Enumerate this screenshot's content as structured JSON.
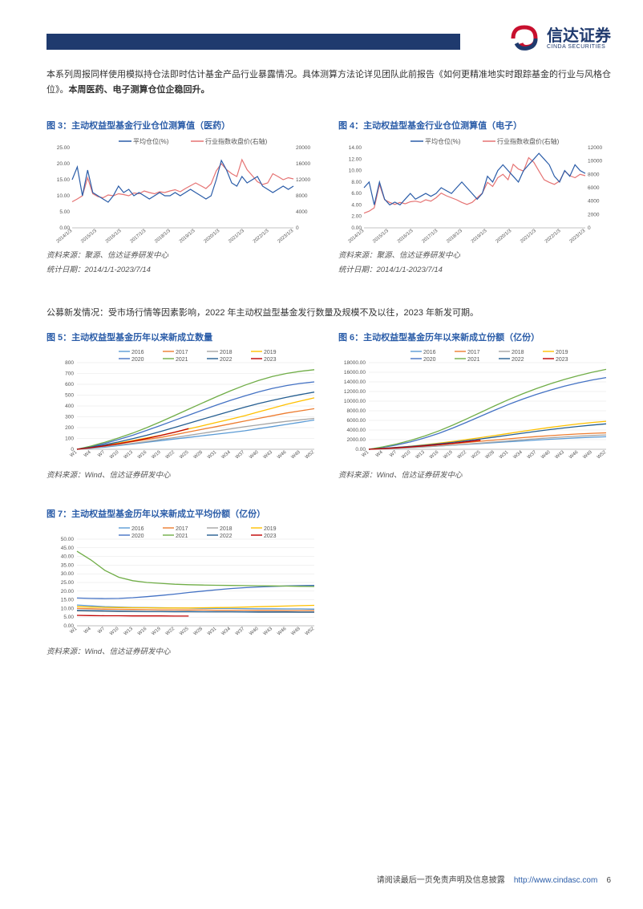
{
  "header": {
    "bar_color": "#1f3a6e",
    "logo_cn": "信达证券",
    "logo_en": "CINDA SECURITIES",
    "logo_colors": {
      "red": "#c8102e",
      "blue": "#1f3a6e",
      "light": "#d9d9d9"
    }
  },
  "para1": {
    "t1": "本系列周报同样使用模拟持仓法即时估计基金产品行业暴露情况。具体测算方法论详见团队此前报告《如何更精准地实时跟踪基金的行业与风格仓位》。",
    "t2": "本周医药、电子测算仓位企稳回升。"
  },
  "chart3": {
    "title": "图 3：主动权益型基金行业仓位测算值（医药）",
    "legend": [
      "平均仓位(%)",
      "行业指数收盘价(右轴)"
    ],
    "colors": {
      "series1": "#2a5ca8",
      "series2": "#e57373",
      "axis": "#888",
      "text": "#333"
    },
    "y1_ticks": [
      "0.00",
      "5.00",
      "10.00",
      "15.00",
      "20.00",
      "25.00"
    ],
    "y2_ticks": [
      "0",
      "4000",
      "8000",
      "12000",
      "16000",
      "20000"
    ],
    "x_ticks": [
      "2014/1/3",
      "2015/1/3",
      "2016/1/3",
      "2017/1/3",
      "2018/1/3",
      "2019/1/3",
      "2020/1/3",
      "2021/1/3",
      "2022/1/3",
      "2023/1/3"
    ],
    "source": "资料来源：聚源、信达证券研发中心",
    "date_range": "统计日期：2014/1/1-2023/7/14",
    "series1": [
      15,
      19,
      10,
      18,
      11,
      10,
      9,
      8,
      10,
      13,
      11,
      12,
      10,
      11,
      10,
      9,
      10,
      11,
      10,
      10,
      11,
      10,
      11,
      12,
      11,
      10,
      9,
      10,
      15,
      21,
      18,
      14,
      13,
      16,
      14,
      15,
      16,
      13,
      12,
      11,
      12,
      13,
      12,
      13
    ],
    "y1_range": [
      0,
      25
    ],
    "series2": [
      6500,
      7200,
      8000,
      12500,
      8500,
      7800,
      7500,
      8200,
      8000,
      8500,
      8300,
      8000,
      8700,
      8500,
      9200,
      8800,
      8500,
      9000,
      8800,
      9200,
      9500,
      9000,
      9800,
      10500,
      11200,
      10500,
      9800,
      11000,
      14200,
      16000,
      14500,
      13500,
      12800,
      17000,
      14500,
      13000,
      11500,
      10800,
      11200,
      13500,
      12800,
      12000,
      12500,
      12200
    ],
    "y2_range": [
      0,
      20000
    ]
  },
  "chart4": {
    "title": "图 4：主动权益型基金行业仓位测算值（电子）",
    "legend": [
      "平均仓位(%)",
      "行业指数收盘价(右轴)"
    ],
    "colors": {
      "series1": "#2a5ca8",
      "series2": "#e57373",
      "axis": "#888",
      "text": "#333"
    },
    "y1_ticks": [
      "0.00",
      "2.00",
      "4.00",
      "6.00",
      "8.00",
      "10.00",
      "12.00",
      "14.00"
    ],
    "y2_ticks": [
      "0",
      "2000",
      "4000",
      "6000",
      "8000",
      "10000",
      "12000"
    ],
    "x_ticks": [
      "2014/1/3",
      "2015/1/3",
      "2016/1/3",
      "2017/1/3",
      "2018/1/3",
      "2019/1/3",
      "2020/1/3",
      "2021/1/3",
      "2022/1/3",
      "2023/1/3"
    ],
    "source": "资料来源：聚源、信达证券研发中心",
    "date_range": "统计日期：2014/1/1-2023/7/14",
    "series1": [
      7,
      8,
      4,
      8,
      5,
      4,
      4.5,
      4,
      5,
      6,
      5,
      5.5,
      6,
      5.5,
      6,
      7,
      6.5,
      6,
      7,
      8,
      7,
      6,
      5,
      6,
      9,
      8,
      10,
      11,
      10,
      9,
      8,
      10,
      11,
      12,
      13,
      12,
      11,
      9,
      8,
      10,
      9,
      11,
      10,
      9.5
    ],
    "y1_range": [
      0,
      14
    ],
    "series2": [
      2200,
      2500,
      3000,
      6500,
      4200,
      3800,
      3500,
      3800,
      3600,
      3900,
      4000,
      3800,
      4200,
      4000,
      4500,
      5200,
      4800,
      4500,
      4200,
      3800,
      3500,
      3800,
      4500,
      5200,
      6800,
      6200,
      7500,
      8000,
      7200,
      9500,
      8800,
      8500,
      10500,
      9800,
      8500,
      7200,
      6800,
      6500,
      7000,
      8500,
      7800,
      7500,
      8000,
      7800
    ],
    "y2_range": [
      0,
      12000
    ]
  },
  "para2": "公募新发情况：受市场行情等因素影响，2022 年主动权益型基金发行数量及规模不及以往，2023 年新发可期。",
  "chart5": {
    "title": "图 5：主动权益型基金历年以来新成立数量",
    "legend_years": [
      "2016",
      "2017",
      "2018",
      "2019",
      "2020",
      "2021",
      "2022",
      "2023"
    ],
    "colors": [
      "#5b9bd5",
      "#ed7d31",
      "#a5a5a5",
      "#ffc000",
      "#4472c4",
      "#70ad47",
      "#255e91",
      "#c00000"
    ],
    "y_ticks": [
      "0",
      "100",
      "200",
      "300",
      "400",
      "500",
      "600",
      "700",
      "800"
    ],
    "y_range": [
      0,
      800
    ],
    "x_ticks": [
      "W1",
      "W4",
      "W7",
      "W10",
      "W13",
      "W16",
      "W19",
      "W22",
      "W25",
      "W28",
      "W31",
      "W34",
      "W37",
      "W40",
      "W43",
      "W46",
      "W49",
      "W52"
    ],
    "source": "资料来源：Wind、信达证券研发中心",
    "series": {
      "2016": [
        0,
        10,
        20,
        35,
        50,
        65,
        80,
        95,
        110,
        125,
        140,
        155,
        170,
        190,
        210,
        230,
        250,
        270
      ],
      "2017": [
        0,
        15,
        30,
        50,
        70,
        90,
        110,
        135,
        160,
        185,
        210,
        235,
        260,
        285,
        310,
        335,
        355,
        375
      ],
      "2018": [
        0,
        12,
        25,
        40,
        55,
        72,
        90,
        108,
        128,
        148,
        168,
        188,
        208,
        225,
        242,
        258,
        272,
        285
      ],
      "2019": [
        0,
        18,
        38,
        58,
        80,
        105,
        130,
        158,
        188,
        218,
        248,
        278,
        310,
        345,
        380,
        415,
        445,
        475
      ],
      "2020": [
        0,
        25,
        55,
        90,
        130,
        175,
        220,
        268,
        315,
        362,
        408,
        452,
        492,
        530,
        562,
        588,
        608,
        622
      ],
      "2021": [
        0,
        30,
        65,
        105,
        150,
        200,
        255,
        312,
        370,
        428,
        485,
        540,
        590,
        635,
        672,
        700,
        720,
        735
      ],
      "2022": [
        0,
        20,
        42,
        68,
        98,
        130,
        165,
        202,
        240,
        278,
        315,
        352,
        388,
        422,
        452,
        480,
        505,
        528
      ],
      "2023": [
        0,
        15,
        32,
        52,
        75,
        100,
        128,
        158,
        190
      ]
    }
  },
  "chart6": {
    "title": "图 6：主动权益型基金历年以来新成立份额（亿份）",
    "legend_years": [
      "2016",
      "2017",
      "2018",
      "2019",
      "2020",
      "2021",
      "2022",
      "2023"
    ],
    "colors": [
      "#5b9bd5",
      "#ed7d31",
      "#a5a5a5",
      "#ffc000",
      "#4472c4",
      "#70ad47",
      "#255e91",
      "#c00000"
    ],
    "y_ticks": [
      "0.00",
      "2000.00",
      "4000.00",
      "6000.00",
      "8000.00",
      "10000.00",
      "12000.00",
      "14000.00",
      "16000.00",
      "18000.00"
    ],
    "y_range": [
      0,
      18000
    ],
    "x_ticks": [
      "W1",
      "W4",
      "W7",
      "W10",
      "W13",
      "W16",
      "W19",
      "W22",
      "W25",
      "W28",
      "W31",
      "W34",
      "W37",
      "W40",
      "W43",
      "W46",
      "W49",
      "W52"
    ],
    "source": "资料来源：Wind、信达证券研发中心",
    "series": {
      "2016": [
        0,
        120,
        240,
        380,
        520,
        680,
        850,
        1020,
        1200,
        1380,
        1560,
        1740,
        1920,
        2080,
        2240,
        2380,
        2500,
        2600
      ],
      "2017": [
        0,
        150,
        310,
        490,
        690,
        910,
        1150,
        1400,
        1660,
        1920,
        2170,
        2410,
        2640,
        2840,
        3020,
        3180,
        3310,
        3420
      ],
      "2018": [
        0,
        100,
        210,
        340,
        490,
        660,
        850,
        1060,
        1280,
        1510,
        1740,
        1970,
        2190,
        2390,
        2570,
        2730,
        2870,
        2990
      ],
      "2019": [
        0,
        180,
        390,
        640,
        930,
        1260,
        1620,
        2010,
        2420,
        2850,
        3290,
        3730,
        4150,
        4550,
        4920,
        5260,
        5560,
        5820
      ],
      "2020": [
        0,
        400,
        900,
        1550,
        2350,
        3300,
        4400,
        5600,
        6850,
        8100,
        9300,
        10400,
        11400,
        12300,
        13100,
        13800,
        14400,
        14900
      ],
      "2021": [
        0,
        500,
        1100,
        1850,
        2750,
        3800,
        5000,
        6300,
        7650,
        9000,
        10300,
        11500,
        12600,
        13600,
        14500,
        15300,
        16000,
        16600
      ],
      "2022": [
        0,
        180,
        380,
        600,
        850,
        1130,
        1440,
        1780,
        2150,
        2540,
        2940,
        3340,
        3730,
        4100,
        4440,
        4750,
        5030,
        5280
      ],
      "2023": [
        0,
        140,
        300,
        490,
        710,
        960,
        1240,
        1550,
        1890
      ]
    }
  },
  "chart7": {
    "title": "图 7：主动权益型基金历年以来新成立平均份额（亿份）",
    "legend_years": [
      "2016",
      "2017",
      "2018",
      "2019",
      "2020",
      "2021",
      "2022",
      "2023"
    ],
    "colors": [
      "#5b9bd5",
      "#ed7d31",
      "#a5a5a5",
      "#ffc000",
      "#4472c4",
      "#70ad47",
      "#255e91",
      "#c00000"
    ],
    "y_ticks": [
      "0.00",
      "5.00",
      "10.00",
      "15.00",
      "20.00",
      "25.00",
      "30.00",
      "35.00",
      "40.00",
      "45.00",
      "50.00"
    ],
    "y_range": [
      0,
      50
    ],
    "x_ticks": [
      "W1",
      "W4",
      "W7",
      "W10",
      "W13",
      "W16",
      "W19",
      "W22",
      "W25",
      "W28",
      "W31",
      "W34",
      "W37",
      "W40",
      "W43",
      "W46",
      "W49",
      "W52"
    ],
    "source": "资料来源：Wind、信达证券研发中心",
    "series": {
      "2016": [
        12,
        11.5,
        11,
        10.8,
        10.6,
        10.5,
        10.4,
        10.3,
        10.2,
        10.1,
        10,
        10,
        9.9,
        9.8,
        9.8,
        9.7,
        9.7,
        9.6
      ],
      "2017": [
        10,
        9.8,
        9.6,
        9.5,
        9.4,
        9.3,
        9.2,
        9.2,
        9.1,
        9.1,
        9,
        9,
        9,
        8.9,
        8.9,
        8.8,
        8.8,
        8.8
      ],
      "2018": [
        8.5,
        8.4,
        8.3,
        8.2,
        8.2,
        8.1,
        8.1,
        8,
        8,
        8,
        7.9,
        7.9,
        7.9,
        7.8,
        7.8,
        7.8,
        7.7,
        7.7
      ],
      "2019": [
        11,
        10.8,
        10.6,
        10.5,
        10.4,
        10.4,
        10.3,
        10.3,
        10.3,
        10.4,
        10.5,
        10.6,
        10.8,
        11,
        11.2,
        11.4,
        11.6,
        11.8
      ],
      "2020": [
        16,
        15.8,
        15.7,
        15.8,
        16.2,
        16.8,
        17.5,
        18.3,
        19.2,
        20,
        20.8,
        21.5,
        22,
        22.4,
        22.7,
        23,
        23.2,
        23.3
      ],
      "2021": [
        43,
        38,
        32,
        28,
        26,
        25,
        24.5,
        24,
        23.7,
        23.5,
        23.4,
        23.3,
        23.2,
        23.1,
        23,
        22.9,
        22.8,
        22.7
      ],
      "2022": [
        9,
        8.8,
        8.6,
        8.5,
        8.4,
        8.3,
        8.3,
        8.2,
        8.2,
        8.1,
        8.1,
        8.1,
        8,
        8,
        8,
        8,
        7.9,
        7.9
      ],
      "2023": [
        6,
        5.9,
        5.8,
        5.8,
        5.7,
        5.7,
        5.7,
        5.6,
        5.6
      ]
    }
  },
  "footer": {
    "left": "请阅读最后一页免责声明及信息披露",
    "link": "http://www.cindasc.com",
    "page": "6"
  }
}
